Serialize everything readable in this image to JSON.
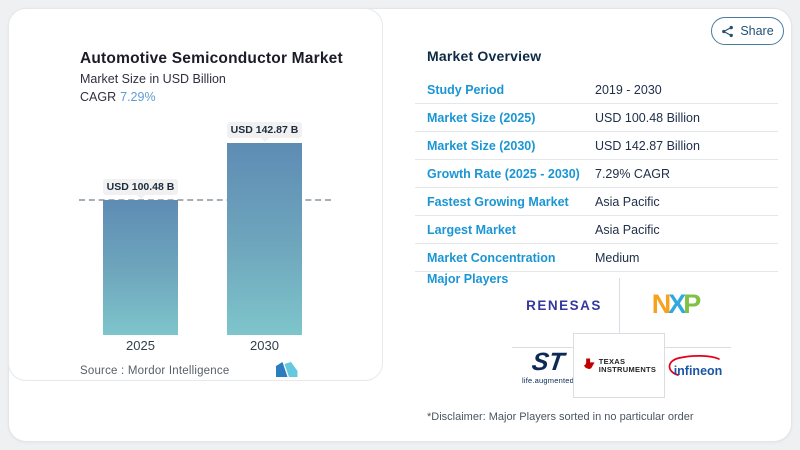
{
  "page": {
    "background": "#eef0f2",
    "card_bg": "#ffffff"
  },
  "chart": {
    "title": "Automotive Semiconductor Market",
    "subtitle": "Market Size in USD Billion",
    "cagr_label": "CAGR",
    "cagr_value": "7.29%",
    "source": "Source :  Mordor Intelligence",
    "bar_top_color": "#5e8cb4",
    "bar_bottom_color": "#7ec5cb"
  },
  "chart_data": {
    "type": "bar",
    "categories": [
      "2025",
      "2030"
    ],
    "values": [
      100.48,
      142.87
    ],
    "unit": "USD Billion",
    "bar_labels": [
      "USD 100.48 B",
      "USD 142.87 B"
    ],
    "title": "Automotive Semiconductor Market",
    "ylabel": "Market Size in USD Billion",
    "cagr_pct": 7.29,
    "baseline_at_first_bar": true,
    "grid": false,
    "legend": false
  },
  "overview": {
    "share_label": "Share",
    "heading": "Market Overview",
    "rows": [
      {
        "label": "Study Period",
        "value": "2019 - 2030"
      },
      {
        "label": "Market Size (2025)",
        "value": "USD 100.48 Billion"
      },
      {
        "label": "Market Size (2030)",
        "value": "USD 142.87 Billion"
      },
      {
        "label": "Growth Rate (2025 - 2030)",
        "value": "7.29% CAGR"
      },
      {
        "label": "Fastest Growing Market",
        "value": "Asia Pacific"
      },
      {
        "label": "Largest Market",
        "value": "Asia Pacific"
      },
      {
        "label": "Market Concentration",
        "value": "Medium"
      }
    ],
    "major_players_label": "Major Players",
    "players": {
      "renesas": "RENESAS",
      "nxp_n": "N",
      "nxp_x": "X",
      "nxp_p": "P",
      "st_name": "ST",
      "st_tagline": "life.augmented",
      "ti_line1": "TEXAS",
      "ti_line2": "INSTRUMENTS",
      "infineon": "infineon"
    },
    "disclaimer": "*Disclaimer: Major Players sorted in no particular order"
  },
  "colors": {
    "label_blue": "#1a96d4",
    "value_navy": "#20304a",
    "cagr_blue": "#5f9bd0",
    "renesas_blue": "#3439a0",
    "nxp_orange": "#f8a11c",
    "nxp_blue": "#2fa9e0",
    "nxp_green": "#7fc241",
    "st_navy": "#0b2a55",
    "ti_red": "#c00000",
    "infineon_blue": "#1c55a4",
    "infineon_red": "#e2001a",
    "mordor_dark_blue": "#2c7cc0",
    "mordor_light_blue": "#64c8de"
  }
}
